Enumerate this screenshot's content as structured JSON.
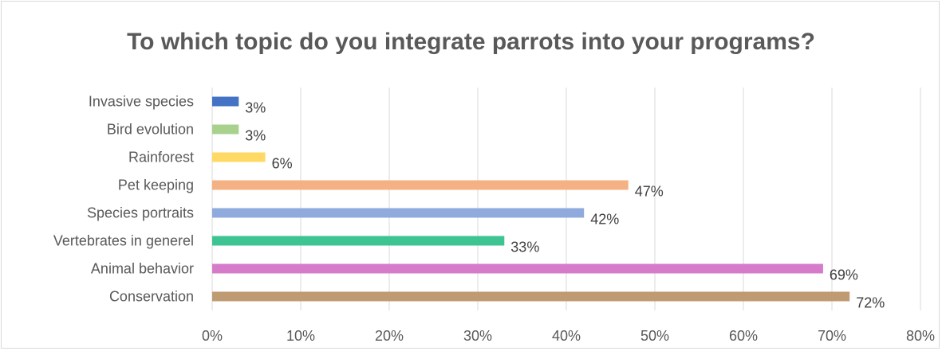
{
  "chart_data": {
    "type": "bar",
    "orientation": "horizontal",
    "title": "To which topic do you integrate parrots into your programs?",
    "categories": [
      "Invasive species",
      "Bird evolution",
      "Rainforest",
      "Pet keeping",
      "Species portraits",
      "Vertebrates in generel",
      "Animal behavior",
      "Conservation"
    ],
    "values": [
      3,
      3,
      6,
      47,
      42,
      33,
      69,
      72
    ],
    "value_labels": [
      "3%",
      "3%",
      "6%",
      "47%",
      "42%",
      "33%",
      "69%",
      "72%"
    ],
    "bar_colors": [
      "#4472c4",
      "#a9d18e",
      "#ffd966",
      "#f4b183",
      "#8faadc",
      "#3ec393",
      "#d57bc9",
      "#bf9b73"
    ],
    "xlim": [
      0,
      80
    ],
    "x_ticks": [
      0,
      10,
      20,
      30,
      40,
      50,
      60,
      70,
      80
    ],
    "x_tick_labels": [
      "0%",
      "10%",
      "20%",
      "30%",
      "40%",
      "50%",
      "60%",
      "70%",
      "80%"
    ],
    "xlabel": "",
    "ylabel": "",
    "grid": "vertical",
    "legend": "none"
  }
}
